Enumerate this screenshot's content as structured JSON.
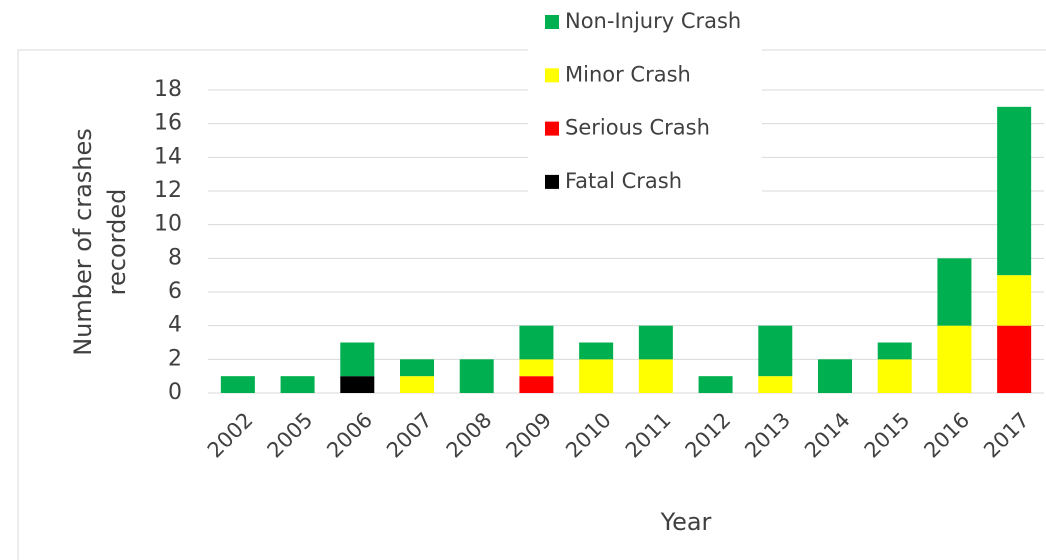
{
  "chart_data": {
    "type": "stacked_bar",
    "y_label": [
      "Number of crashes",
      "recorded"
    ],
    "x_label": "Year",
    "categories": [
      "2002",
      "2005",
      "2006",
      "2007",
      "2008",
      "2009",
      "2010",
      "2011",
      "2012",
      "2013",
      "2014",
      "2015",
      "2016",
      "2017"
    ],
    "series": [
      {
        "name": "Non-Injury Crash",
        "color": "#00b050",
        "values": [
          1,
          1,
          2,
          1,
          2,
          2,
          1,
          2,
          1,
          3,
          2,
          1,
          4,
          10
        ]
      },
      {
        "name": "Minor Crash",
        "color": "#ffff00",
        "values": [
          0,
          0,
          0,
          1,
          0,
          1,
          2,
          2,
          0,
          1,
          0,
          2,
          4,
          3
        ]
      },
      {
        "name": "Serious Crash",
        "color": "#ff0000",
        "values": [
          0,
          0,
          0,
          0,
          0,
          1,
          0,
          0,
          0,
          0,
          0,
          0,
          0,
          4
        ]
      },
      {
        "name": "Fatal Crash",
        "color": "#000000",
        "values": [
          0,
          0,
          1,
          0,
          0,
          0,
          0,
          0,
          0,
          0,
          0,
          0,
          0,
          0
        ]
      }
    ],
    "ylim": [
      0,
      18
    ],
    "yticks": [
      0,
      2,
      4,
      6,
      8,
      10,
      12,
      14,
      16,
      18
    ],
    "grid": true
  }
}
